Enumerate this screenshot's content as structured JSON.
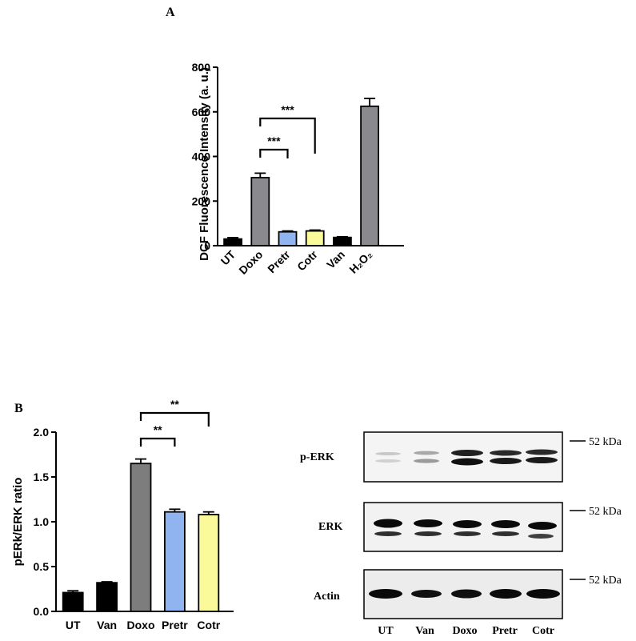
{
  "panel_a": {
    "label": "A"
  },
  "panel_b": {
    "label": "B"
  },
  "chart_data": [
    {
      "type": "bar",
      "categories": [
        "UT",
        "Doxo",
        "Pretr",
        "Cotr",
        "Van",
        "H₂O₂"
      ],
      "values": [
        30,
        305,
        62,
        66,
        37,
        625
      ],
      "errors": [
        6,
        20,
        4,
        4,
        3,
        35
      ],
      "colors": [
        "#000000",
        "#8a8a8e",
        "#8fb4f0",
        "#fafa9a",
        "#000000",
        "#8a8a8e"
      ],
      "ylabel": "DCF Fluorescence Intensity (a. u.)",
      "ylim": [
        0,
        800
      ],
      "yticks": [
        0,
        200,
        400,
        600,
        800
      ],
      "significance": [
        {
          "from": "Doxo",
          "to": "Pretr",
          "label": "***"
        },
        {
          "from": "Doxo",
          "to": "Cotr",
          "label": "***"
        }
      ]
    },
    {
      "type": "bar",
      "categories": [
        "UT",
        "Van",
        "Doxo",
        "Pretr",
        "Cotr"
      ],
      "values": [
        0.21,
        0.32,
        1.65,
        1.11,
        1.08
      ],
      "errors": [
        0.02,
        0.01,
        0.05,
        0.03,
        0.03
      ],
      "colors": [
        "#000000",
        "#000000",
        "#7d7d7d",
        "#8fb4f0",
        "#fafa9a"
      ],
      "ylabel": "pERk/ERK ratio",
      "ylim": [
        0,
        2.0
      ],
      "yticks": [
        "0.0",
        "0.5",
        "1.0",
        "1.5",
        "2.0"
      ],
      "significance": [
        {
          "from": "Doxo",
          "to": "Pretr",
          "label": "**"
        },
        {
          "from": "Doxo",
          "to": "Cotr",
          "label": "**"
        }
      ]
    }
  ],
  "blot": {
    "rows": [
      {
        "label": "p-ERK",
        "marker": "52 kDa"
      },
      {
        "label": "ERK",
        "marker": "52 kDa"
      },
      {
        "label": "Actin",
        "marker": "52 kDa"
      }
    ],
    "lanes": [
      "UT",
      "Van",
      "Doxo",
      "Pretr",
      "Cotr"
    ]
  }
}
